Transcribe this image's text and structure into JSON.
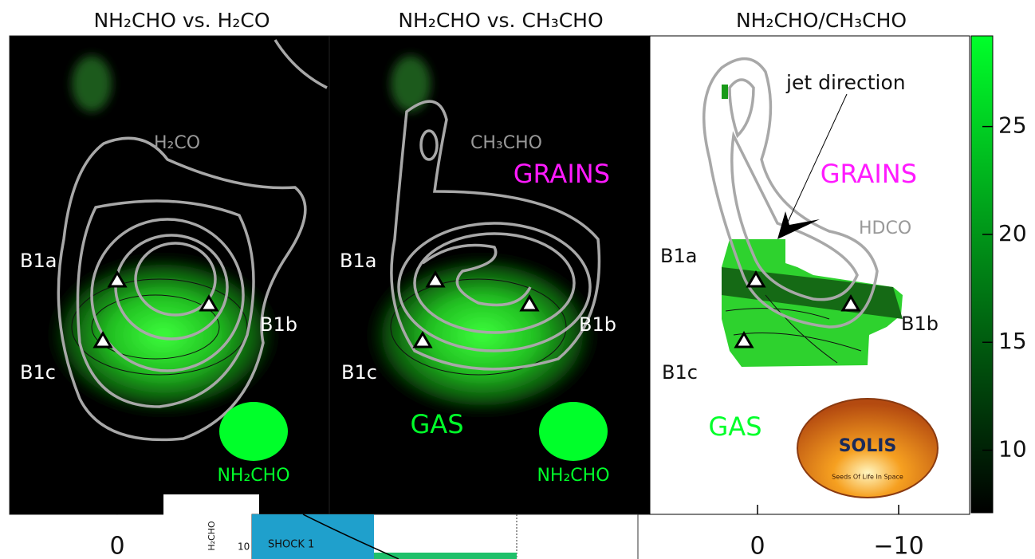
{
  "panels": [
    {
      "title": "NH₂CHO vs. H₂CO",
      "tracer": "H₂CO",
      "beam": "NH₂CHO",
      "markers": [
        "B1a",
        "B1b",
        "B1c"
      ],
      "xticks": [
        0
      ]
    },
    {
      "title": "NH₂CHO vs. CH₃CHO",
      "tracer": "CH₃CHO",
      "beam": "NH₂CHO",
      "markers": [
        "B1a",
        "B1b",
        "B1c"
      ],
      "regions": [
        "GRAINS",
        "GAS"
      ]
    },
    {
      "title": "NH₂CHO/CH₃CHO",
      "tracer": "HDCO",
      "annotation": "jet direction",
      "markers": [
        "B1a",
        "B1b",
        "B1c"
      ],
      "regions": [
        "GRAINS",
        "GAS"
      ],
      "xticks": [
        0,
        {
          "value": -10,
          "label": "−10"
        }
      ]
    }
  ],
  "colorbar": {
    "lim": [
      7.1,
      29.2
    ],
    "ticks": [
      10,
      15,
      20,
      25
    ]
  },
  "inset": {
    "ylabel": "H₂CHO",
    "ytick": "10",
    "label": "SHOCK 1"
  },
  "logo": {
    "name": "SOLIS",
    "motto": "Seeds Of Life In Space"
  }
}
